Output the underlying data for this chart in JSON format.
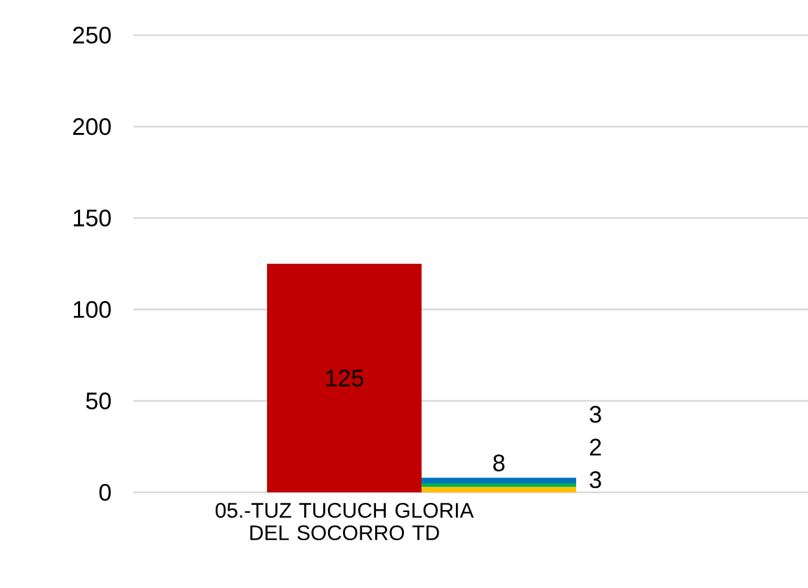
{
  "chart_data": {
    "type": "bar",
    "stacked": true,
    "categories": [
      "05.-TUZ TUCUCH GLORIA DEL SOCORRO TD",
      null
    ],
    "series": [
      {
        "color": "#c00000",
        "values": [
          125,
          null
        ]
      },
      {
        "color": "#ffc000",
        "values": [
          null,
          3
        ]
      },
      {
        "color": "#00b050",
        "values": [
          null,
          2
        ]
      },
      {
        "color": "#0070c0",
        "values": [
          null,
          3
        ]
      }
    ],
    "totals": [
      null,
      "8"
    ],
    "data_labels": true,
    "ylim": [
      0,
      250
    ],
    "yticks": [
      0,
      50,
      100,
      150,
      200,
      250
    ],
    "grid": "y"
  }
}
